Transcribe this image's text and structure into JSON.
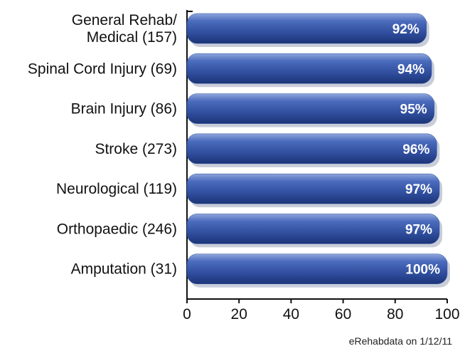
{
  "chart_data": {
    "type": "bar",
    "orientation": "horizontal",
    "categories": [
      "General Rehab/\nMedical (157)",
      "Spinal Cord Injury (69)",
      "Brain Injury (86)",
      "Stroke (273)",
      "Neurological (119)",
      "Orthopaedic (246)",
      "Amputation (31)"
    ],
    "values": [
      92,
      94,
      95,
      96,
      97,
      97,
      100
    ],
    "value_labels": [
      "92%",
      "94%",
      "95%",
      "96%",
      "97%",
      "97%",
      "100%"
    ],
    "color": "#2f4f9f",
    "xlim": [
      0,
      100
    ],
    "xticks": [
      0,
      20,
      40,
      60,
      80,
      100
    ],
    "source": "eRehabdata on 1/12/11"
  }
}
